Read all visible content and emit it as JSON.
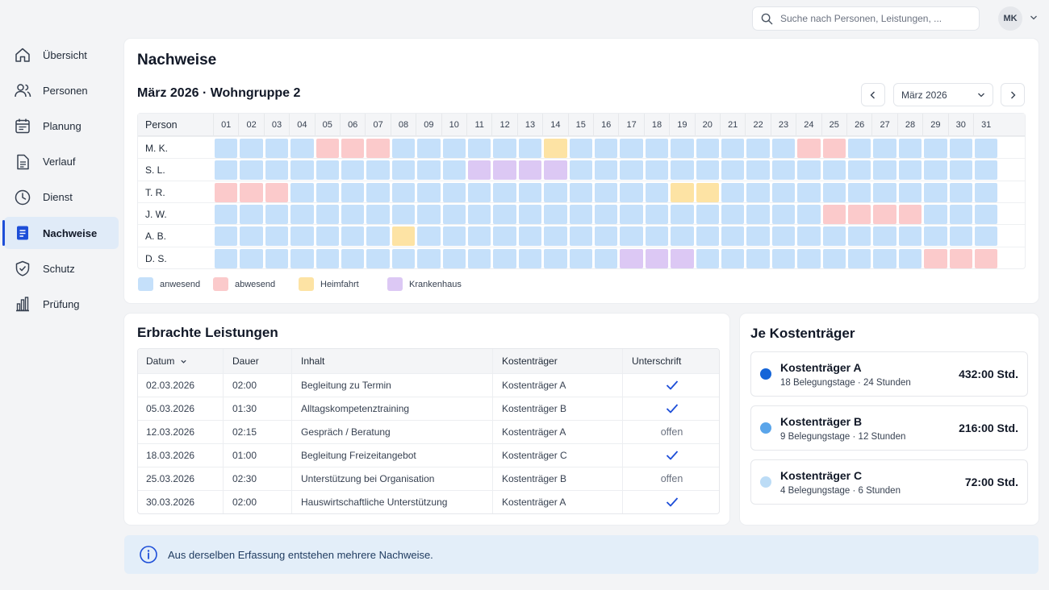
{
  "search": {
    "placeholder": "Suche nach Personen, Leistungen, ..."
  },
  "user": {
    "initials": "MK"
  },
  "sidebar": {
    "items": [
      {
        "label": "Übersicht",
        "icon": "home-icon",
        "active": false
      },
      {
        "label": "Personen",
        "icon": "users-icon",
        "active": false
      },
      {
        "label": "Planung",
        "icon": "calendar-icon",
        "active": false
      },
      {
        "label": "Verlauf",
        "icon": "document-icon",
        "active": false
      },
      {
        "label": "Dienst",
        "icon": "clock-icon",
        "active": false
      },
      {
        "label": "Nachweise",
        "icon": "document-filled-icon",
        "active": true
      },
      {
        "label": "Schutz",
        "icon": "shield-check-icon",
        "active": false
      },
      {
        "label": "Prüfung",
        "icon": "bar-chart-icon",
        "active": false
      }
    ]
  },
  "main": {
    "title": "Nachweise",
    "subtitle": "März 2026 · Wohngruppe 2",
    "month_select": "März 2026",
    "grid": {
      "person_header": "Person",
      "days": [
        "01",
        "02",
        "03",
        "04",
        "05",
        "06",
        "07",
        "08",
        "09",
        "10",
        "11",
        "12",
        "13",
        "14",
        "15",
        "16",
        "17",
        "18",
        "19",
        "20",
        "21",
        "22",
        "23",
        "24",
        "25",
        "26",
        "27",
        "28",
        "29",
        "30",
        "31"
      ],
      "rows": [
        {
          "person": "M. K.",
          "status": "aaaabbbaaaaaahaaaaaaaaabbaaaaaa"
        },
        {
          "person": "S. L.",
          "status": "aaaaaaaaaakkkkaaaaaaaaaaaaaaaaa"
        },
        {
          "person": "T. R.",
          "status": "bbbaaaaaaaaaaaaaaahhaaaaaaaaaaa"
        },
        {
          "person": "J. W.",
          "status": "aaaaaaaaaaaaaaaaaaaaaaaabbbbaaa"
        },
        {
          "person": "A. B.",
          "status": "aaaaaaahaaaaaaaaaaaaaaaaaaaaaaa"
        },
        {
          "person": "D. S.",
          "status": "aaaaaaaaaaaaaaaakkkaaaaaaaaabbb"
        }
      ]
    },
    "legend": [
      {
        "key": "a",
        "label": "anwesend",
        "color": "#c5e0fa"
      },
      {
        "key": "b",
        "label": "abwesend",
        "color": "#fbcacb"
      },
      {
        "key": "h",
        "label": "Heimfahrt",
        "color": "#fde3a4"
      },
      {
        "key": "k",
        "label": "Krankenhaus",
        "color": "#dcc8f4"
      }
    ]
  },
  "services": {
    "title": "Erbrachte Leistungen",
    "columns": [
      "Datum",
      "Dauer",
      "Inhalt",
      "Kostenträger",
      "Unterschrift"
    ],
    "rows": [
      {
        "datum": "02.03.2026",
        "dauer": "02:00",
        "inhalt": "Begleitung zu Termin",
        "kostentraeger": "Kostenträger A",
        "unterschrift": "check",
        "unterschrift_text": ""
      },
      {
        "datum": "05.03.2026",
        "dauer": "01:30",
        "inhalt": "Alltagskompetenztraining",
        "kostentraeger": "Kostenträger B",
        "unterschrift": "check",
        "unterschrift_text": ""
      },
      {
        "datum": "12.03.2026",
        "dauer": "02:15",
        "inhalt": "Gespräch / Beratung",
        "kostentraeger": "Kostenträger A",
        "unterschrift": "text",
        "unterschrift_text": "offen"
      },
      {
        "datum": "18.03.2026",
        "dauer": "01:00",
        "inhalt": "Begleitung Freizeitangebot",
        "kostentraeger": "Kostenträger C",
        "unterschrift": "check",
        "unterschrift_text": ""
      },
      {
        "datum": "25.03.2026",
        "dauer": "02:30",
        "inhalt": "Unterstützung bei Organisation",
        "kostentraeger": "Kostenträger B",
        "unterschrift": "text",
        "unterschrift_text": "offen"
      },
      {
        "datum": "30.03.2026",
        "dauer": "02:00",
        "inhalt": "Hauswirtschaftliche Unterstützung",
        "kostentraeger": "Kostenträger A",
        "unterschrift": "check",
        "unterschrift_text": ""
      }
    ]
  },
  "cost": {
    "title": "Je Kostenträger",
    "items": [
      {
        "name": "Kostenträger A",
        "desc": "18 Belegungstage · 24 Stunden",
        "value": "432:00 Std.",
        "color": "#1565d8"
      },
      {
        "name": "Kostenträger B",
        "desc": "9 Belegungstage · 12 Stunden",
        "value": "216:00 Std.",
        "color": "#5aa5ea"
      },
      {
        "name": "Kostenträger C",
        "desc": "4 Belegungstage · 6 Stunden",
        "value": "72:00 Std.",
        "color": "#bcdcf6"
      }
    ]
  },
  "info": {
    "text": "Aus derselben Erfassung entstehen mehrere Nachweise."
  }
}
